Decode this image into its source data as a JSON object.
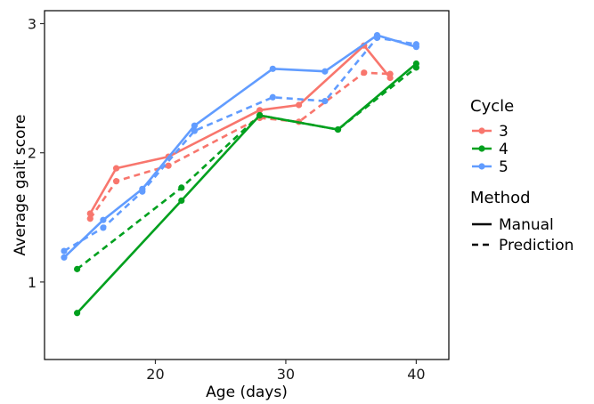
{
  "chart_data": {
    "type": "line",
    "xlabel": "Age (days)",
    "ylabel": "Average gait score",
    "xlim": [
      11.5,
      42.5
    ],
    "ylim": [
      0.4,
      3.1
    ],
    "x_ticks": [
      20,
      30,
      40
    ],
    "y_ticks": [
      1,
      2,
      3
    ],
    "grid": false,
    "legend_position": "right",
    "legend": {
      "cycle_title": "Cycle",
      "method_title": "Method",
      "method_labels": [
        "Manual",
        "Prediction"
      ]
    },
    "series": [
      {
        "name": "3",
        "method": "Manual",
        "color": "#F8766D",
        "dash": "solid",
        "x": [
          15,
          17,
          21,
          28,
          31,
          36,
          38
        ],
        "y": [
          1.53,
          1.88,
          1.97,
          2.33,
          2.37,
          2.83,
          2.58
        ]
      },
      {
        "name": "3",
        "method": "Prediction",
        "color": "#F8766D",
        "dash": "dashed",
        "x": [
          15,
          17,
          21,
          28,
          31,
          36,
          38
        ],
        "y": [
          1.49,
          1.78,
          1.9,
          2.27,
          2.24,
          2.62,
          2.61
        ]
      },
      {
        "name": "4",
        "method": "Manual",
        "color": "#00A01E",
        "dash": "solid",
        "x": [
          14,
          22,
          28,
          34,
          40
        ],
        "y": [
          0.76,
          1.63,
          2.29,
          2.18,
          2.69
        ]
      },
      {
        "name": "4",
        "method": "Prediction",
        "color": "#00A01E",
        "dash": "dashed",
        "x": [
          14,
          22,
          28,
          34,
          40
        ],
        "y": [
          1.1,
          1.73,
          2.29,
          2.18,
          2.66
        ]
      },
      {
        "name": "5",
        "method": "Manual",
        "color": "#619CFF",
        "dash": "solid",
        "x": [
          13,
          16,
          19,
          23,
          29,
          33,
          37,
          40
        ],
        "y": [
          1.19,
          1.48,
          1.72,
          2.21,
          2.65,
          2.63,
          2.91,
          2.82
        ]
      },
      {
        "name": "5",
        "method": "Prediction",
        "color": "#619CFF",
        "dash": "dashed",
        "x": [
          13,
          16,
          19,
          23,
          29,
          33,
          37,
          40
        ],
        "y": [
          1.24,
          1.42,
          1.7,
          2.17,
          2.43,
          2.4,
          2.89,
          2.84
        ]
      }
    ]
  }
}
